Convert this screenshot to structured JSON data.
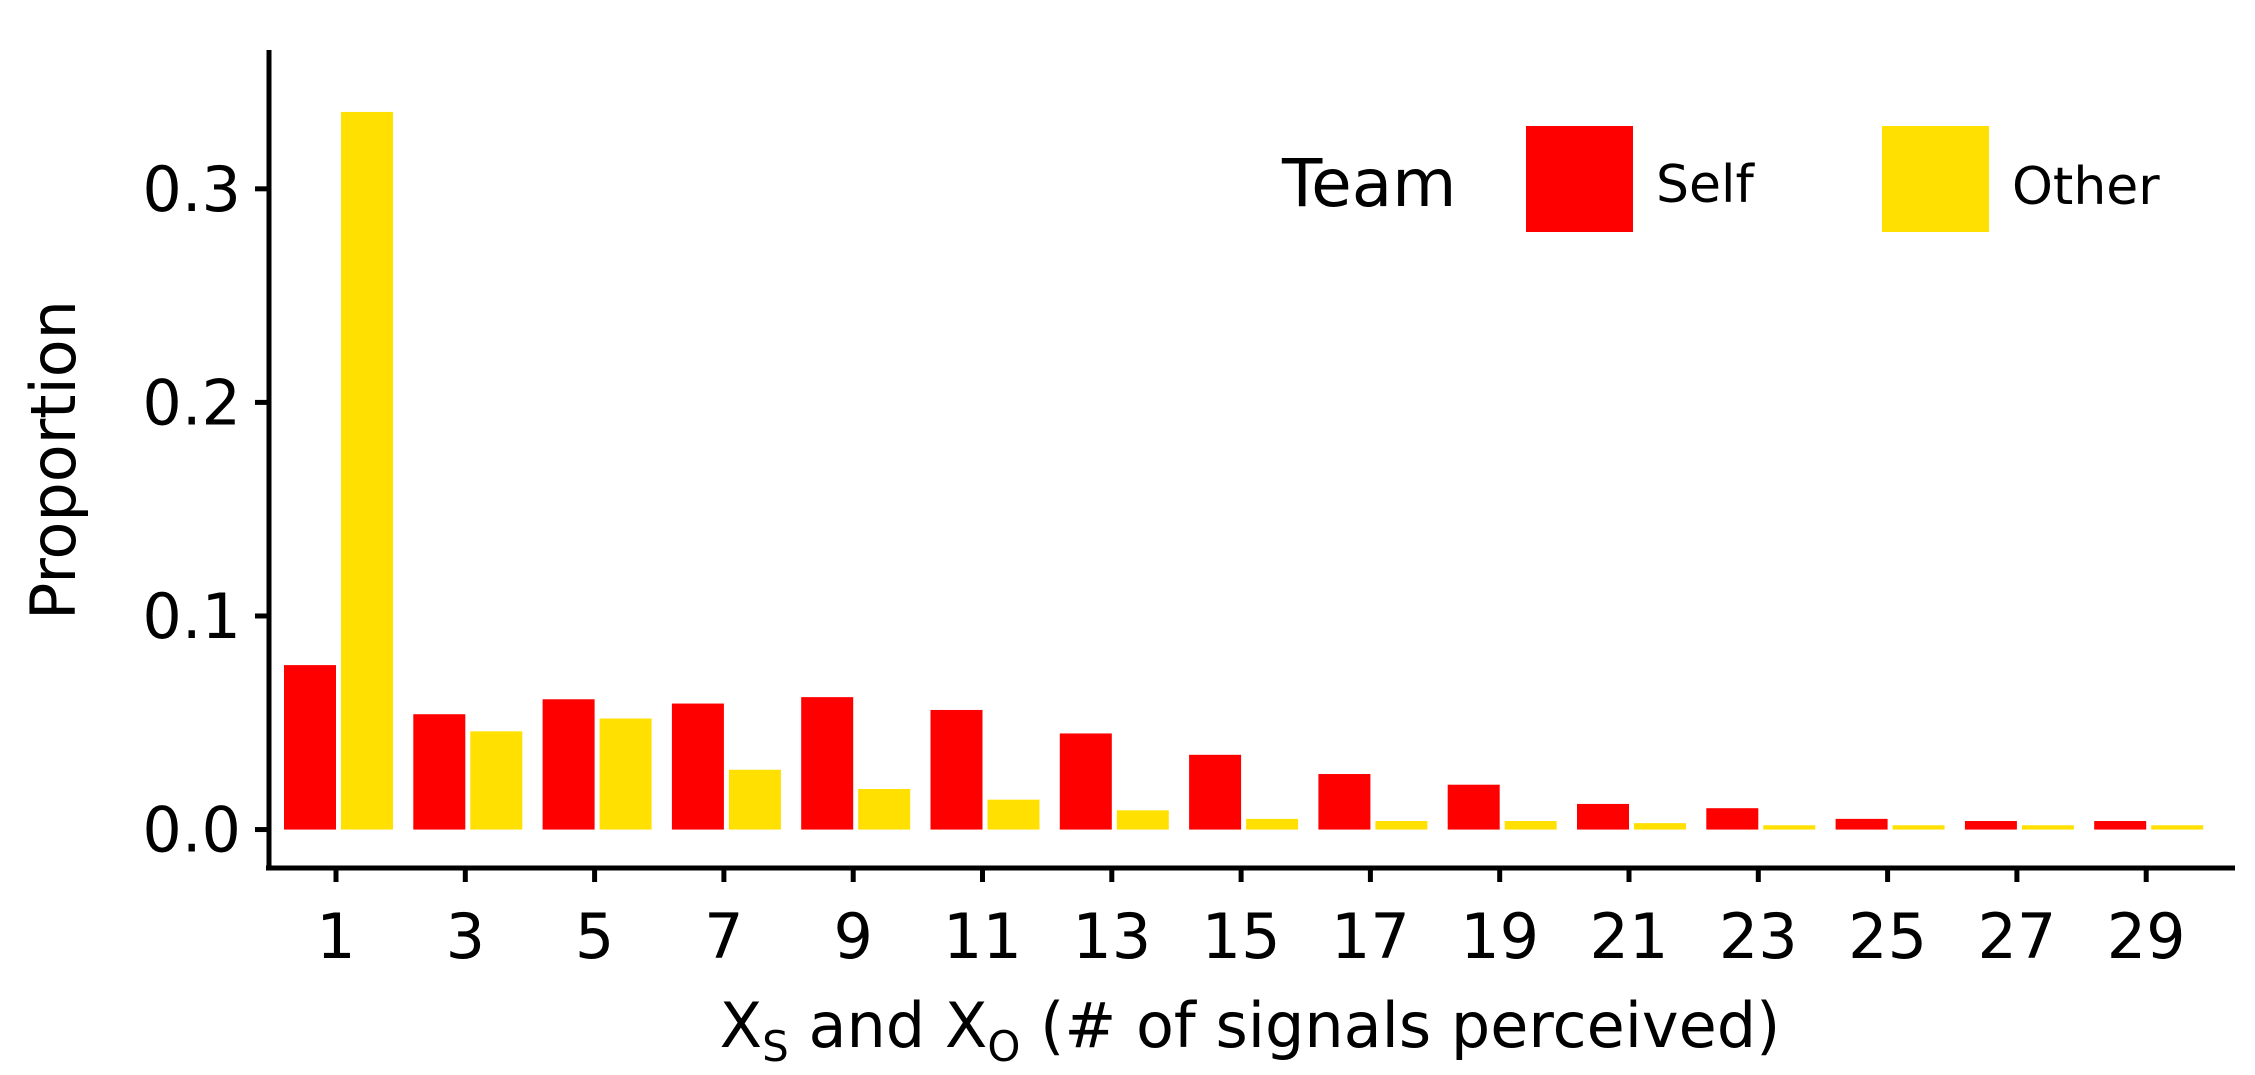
{
  "chart_data": {
    "type": "bar",
    "x": [
      1,
      3,
      5,
      7,
      9,
      11,
      13,
      15,
      17,
      19,
      21,
      23,
      25,
      27,
      29
    ],
    "series": [
      {
        "name": "Self",
        "color": "#FF0000",
        "values": [
          0.077,
          0.054,
          0.061,
          0.059,
          0.062,
          0.056,
          0.045,
          0.035,
          0.026,
          0.021,
          0.012,
          0.01,
          0.005,
          0.004,
          0.004
        ]
      },
      {
        "name": "Other",
        "color": "#FFE000",
        "values": [
          0.336,
          0.046,
          0.052,
          0.028,
          0.019,
          0.014,
          0.009,
          0.005,
          0.004,
          0.004,
          0.003,
          0.002,
          0.002,
          0.002,
          0.002
        ]
      }
    ],
    "xlabel": {
      "main": "X",
      "sub1": "S",
      "mid": " and X",
      "sub2": "O",
      "tail": " (# of signals perceived)"
    },
    "ylabel": "Proportion",
    "yticks": [
      "0.0",
      "0.1",
      "0.2",
      "0.3"
    ],
    "ytick_values": [
      0,
      0.1,
      0.2,
      0.3
    ],
    "ylim": [
      -0.018,
      0.365
    ],
    "legend": {
      "title": "Team",
      "placement": "top-right"
    },
    "grid": false
  }
}
